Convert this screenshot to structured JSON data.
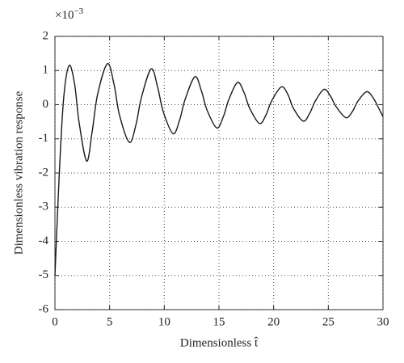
{
  "chart_data": {
    "type": "line",
    "xlabel": "Dimensionless t̂",
    "ylabel": "Dimensionless vibration response",
    "y_multiplier": {
      "base": "×10",
      "exponent": "−3"
    },
    "x": [
      0,
      0.4,
      0.8,
      1.3,
      1.8,
      2.2,
      2.9,
      3.4,
      3.9,
      4.8,
      5.4,
      5.9,
      6.8,
      7.4,
      7.9,
      8.8,
      9.4,
      9.9,
      10.8,
      11.4,
      11.9,
      12.8,
      13.4,
      13.9,
      14.8,
      15.4,
      15.9,
      16.7,
      17.3,
      17.8,
      18.7,
      19.3,
      19.8,
      20.7,
      21.3,
      21.8,
      22.7,
      23.3,
      23.8,
      24.6,
      25.2,
      25.7,
      26.6,
      27.2,
      27.7,
      28.5,
      29.1,
      29.6,
      30
    ],
    "series": [
      {
        "color": "#1a1a1a",
        "values": [
          -5,
          -2.0,
          0.2,
          1.15,
          0.6,
          -0.5,
          -1.65,
          -0.8,
          0.3,
          1.2,
          0.6,
          -0.3,
          -1.1,
          -0.6,
          0.2,
          1.05,
          0.5,
          -0.2,
          -0.85,
          -0.45,
          0.15,
          0.82,
          0.4,
          -0.15,
          -0.68,
          -0.35,
          0.15,
          0.65,
          0.35,
          -0.1,
          -0.55,
          -0.3,
          0.1,
          0.52,
          0.3,
          -0.1,
          -0.48,
          -0.25,
          0.1,
          0.45,
          0.25,
          -0.05,
          -0.38,
          -0.2,
          0.1,
          0.38,
          0.2,
          -0.1,
          -0.35
        ]
      }
    ],
    "xlim": [
      0,
      30
    ],
    "xticks": [
      0,
      5,
      10,
      15,
      20,
      25,
      30
    ],
    "ylim": [
      -6,
      2
    ],
    "yticks": [
      -6,
      -5,
      -4,
      -3,
      -2,
      -1,
      0,
      1,
      2
    ],
    "grid": true
  }
}
